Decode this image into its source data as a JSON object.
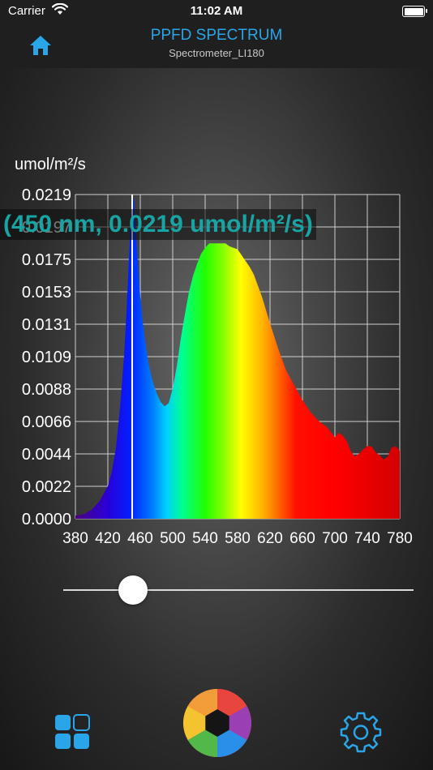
{
  "status_bar": {
    "carrier": "Carrier",
    "time": "11:02 AM"
  },
  "nav": {
    "title": "PPFD SPECTRUM",
    "subtitle": "Spectrometer_LI180"
  },
  "colors": {
    "accent": "#2aa6e8",
    "readout": "#19a3a3"
  },
  "icons": {
    "home": "home-icon",
    "grid": "grid-icon",
    "camera": "camera-aperture-icon",
    "settings": "gear-icon",
    "wifi": "wifi-icon",
    "battery": "battery-icon"
  },
  "readout": {
    "text": "(450 nm, 0.0219 umol/m²/s)"
  },
  "slider": {
    "value_nm": 450
  },
  "chart_data": {
    "type": "area",
    "title": "",
    "ylabel": "umol/m²/s",
    "xlabel": "",
    "xlim": [
      380,
      780
    ],
    "ylim": [
      0.0,
      0.0219
    ],
    "x_ticks": [
      "380",
      "420",
      "460",
      "500",
      "540",
      "580",
      "620",
      "660",
      "700",
      "740",
      "780"
    ],
    "y_ticks": [
      "0.0000",
      "0.0022",
      "0.0044",
      "0.0066",
      "0.0088",
      "0.0109",
      "0.0131",
      "0.0153",
      "0.0175",
      "0.0197",
      "0.0219"
    ],
    "grid": true,
    "cursor": {
      "x": 450,
      "y": 0.0219
    },
    "series": [
      {
        "x": [
          380,
          390,
          400,
          410,
          420,
          425,
          430,
          435,
          440,
          443,
          446,
          448,
          450,
          452,
          454,
          456,
          458,
          460,
          463,
          466,
          470,
          475,
          480,
          485,
          490,
          495,
          500,
          505,
          510,
          515,
          520,
          525,
          530,
          535,
          540,
          545,
          550,
          555,
          560,
          565,
          570,
          575,
          580,
          585,
          590,
          595,
          600,
          610,
          620,
          630,
          640,
          650,
          660,
          670,
          680,
          690,
          700,
          705,
          710,
          715,
          720,
          725,
          730,
          735,
          740,
          745,
          750,
          755,
          760,
          765,
          770,
          775,
          780
        ],
        "values": [
          0.0002,
          0.0003,
          0.0006,
          0.0012,
          0.0022,
          0.0032,
          0.0048,
          0.0075,
          0.011,
          0.014,
          0.0175,
          0.02,
          0.0219,
          0.0215,
          0.02,
          0.0182,
          0.0165,
          0.015,
          0.0133,
          0.012,
          0.0105,
          0.0093,
          0.0085,
          0.0079,
          0.0076,
          0.0078,
          0.0088,
          0.0103,
          0.0122,
          0.0138,
          0.0153,
          0.0164,
          0.0172,
          0.0179,
          0.0183,
          0.0186,
          0.0186,
          0.0186,
          0.0186,
          0.0186,
          0.0184,
          0.0183,
          0.0182,
          0.0178,
          0.0174,
          0.017,
          0.0165,
          0.015,
          0.0132,
          0.0115,
          0.01,
          0.009,
          0.008,
          0.0072,
          0.0066,
          0.0062,
          0.0055,
          0.0058,
          0.0056,
          0.0052,
          0.0045,
          0.0042,
          0.0044,
          0.0047,
          0.0049,
          0.0049,
          0.0045,
          0.0043,
          0.004,
          0.0042,
          0.0048,
          0.0049,
          0.0046
        ]
      }
    ]
  }
}
